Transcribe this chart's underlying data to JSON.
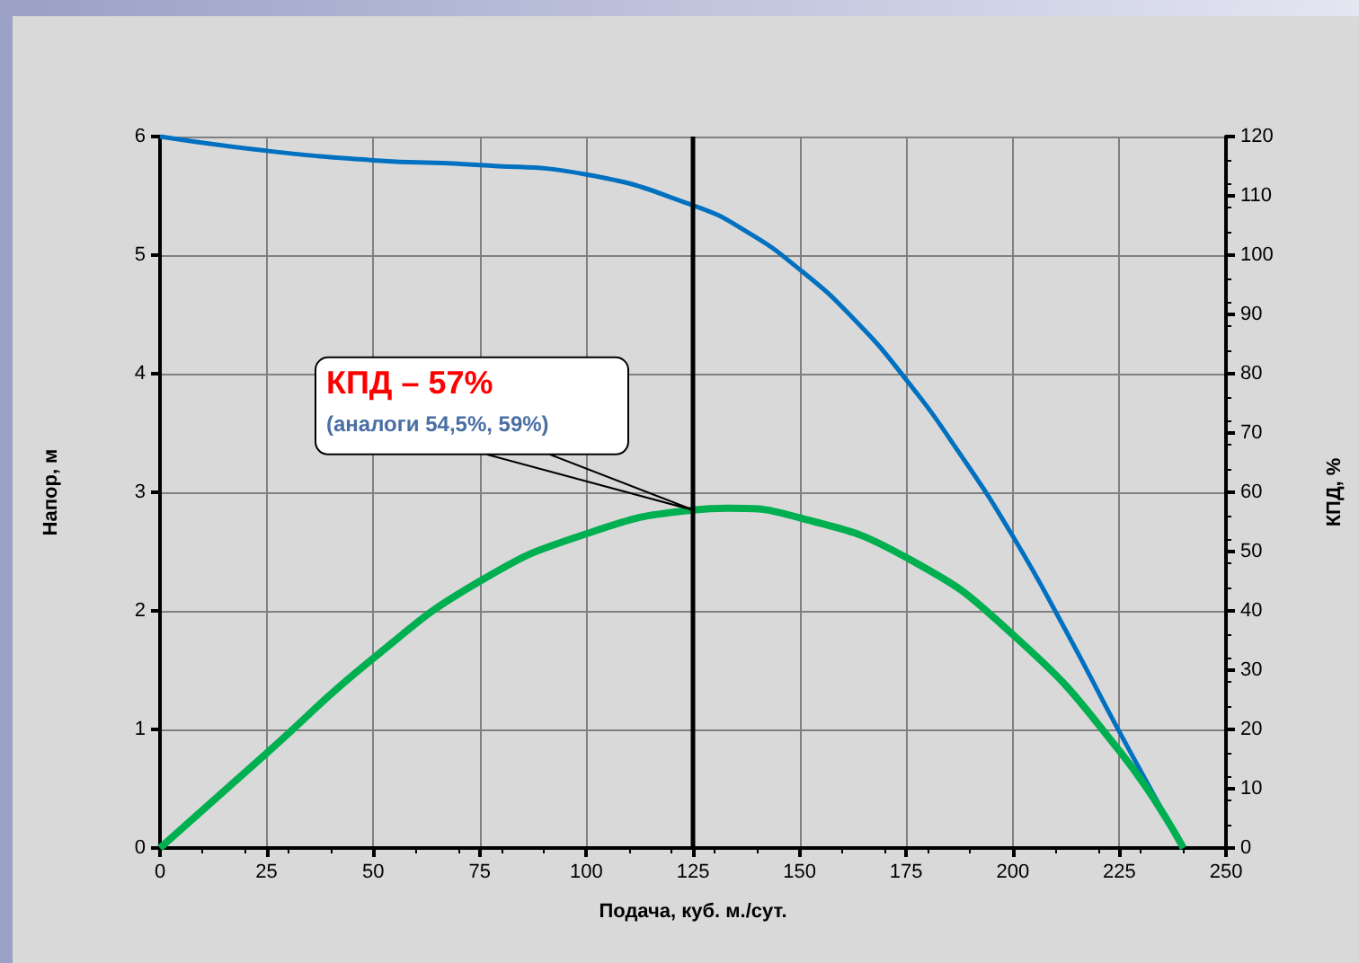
{
  "chart_data": {
    "type": "line",
    "xlabel": "Подача, куб. м./сут.",
    "ylabel": "Напор, м",
    "y2label": "КПД, %",
    "xlim": [
      0,
      250
    ],
    "xticks": [
      0,
      25,
      50,
      75,
      100,
      125,
      150,
      175,
      200,
      225,
      250
    ],
    "ylim": [
      0,
      6
    ],
    "yticks": [
      0,
      1,
      2,
      3,
      4,
      5,
      6
    ],
    "y2lim": [
      0,
      120
    ],
    "y2ticks": [
      0,
      10,
      20,
      30,
      40,
      50,
      60,
      70,
      80,
      90,
      100,
      110,
      120
    ],
    "grid": true,
    "marker": "none",
    "line_style": "solid",
    "series": [
      {
        "color": "#0070c0",
        "x": [
          0,
          25,
          50,
          75,
          100,
          125,
          137.5,
          150,
          162.5,
          175,
          187.5,
          200,
          212.5,
          225,
          240
        ],
        "values": [
          6.0,
          5.88,
          5.8,
          5.76,
          5.68,
          5.42,
          5.2,
          4.88,
          4.47,
          3.95,
          3.33,
          2.63,
          1.83,
          0.98,
          0
        ]
      },
      {
        "color": "#00b050",
        "axis": "y2",
        "x": [
          0,
          25,
          50,
          75,
          100,
          125,
          133,
          150,
          175,
          200,
          225,
          240
        ],
        "values": [
          0,
          16,
          32,
          45,
          53,
          57,
          57.3,
          55.7,
          49,
          36,
          16.4,
          0
        ]
      }
    ],
    "ref_lines": [
      {
        "axis": "x",
        "value": 125,
        "color": "#000000",
        "line_style": "solid"
      }
    ],
    "annotations": [
      "КПД – 57%",
      "(аналоги 54,5%, 59%)"
    ]
  }
}
